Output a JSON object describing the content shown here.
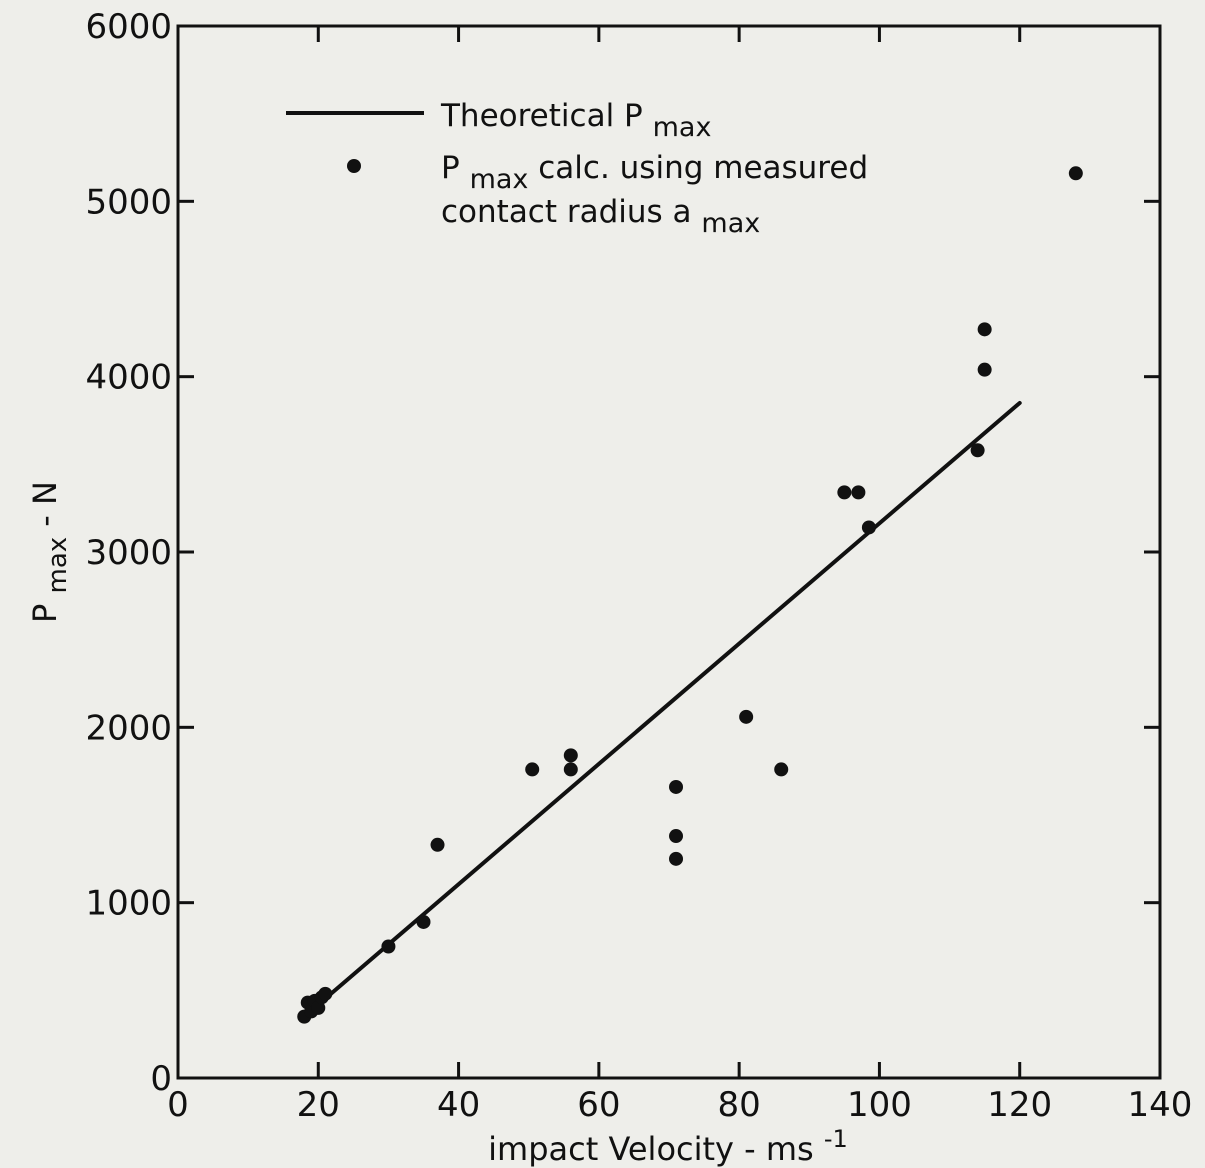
{
  "chart_data": {
    "type": "scatter",
    "title": "",
    "xlabel": "impact Velocity - ms",
    "xlabel_sup": "-1",
    "ylabel": "P",
    "ylabel_sub": "max",
    "ylabel_suffix": " - N",
    "xlim": [
      0,
      140
    ],
    "ylim": [
      0,
      6000
    ],
    "xticks": [
      0,
      20,
      40,
      60,
      80,
      100,
      120,
      140
    ],
    "yticks": [
      0,
      1000,
      2000,
      3000,
      4000,
      5000,
      6000
    ],
    "grid": false,
    "legend_position": "top-left",
    "legend": {
      "line": {
        "text": "Theoretical P",
        "sub": "max"
      },
      "points": {
        "line1_main": "P",
        "line1_sub": "max",
        "line1_rest": " calc. using measured",
        "line2_main": "contact radius a",
        "line2_sub": "max"
      }
    },
    "series": [
      {
        "kind": "line",
        "points": [
          [
            18,
            350
          ],
          [
            120,
            3850
          ]
        ]
      },
      {
        "kind": "scatter",
        "points": [
          [
            18,
            350
          ],
          [
            18.5,
            430
          ],
          [
            19,
            380
          ],
          [
            19.5,
            440
          ],
          [
            20,
            400
          ],
          [
            20.5,
            460
          ],
          [
            21,
            480
          ],
          [
            30,
            750
          ],
          [
            35,
            890
          ],
          [
            37,
            1330
          ],
          [
            50.5,
            1760
          ],
          [
            56,
            1840
          ],
          [
            56,
            1760
          ],
          [
            71,
            1660
          ],
          [
            71,
            1380
          ],
          [
            71,
            1250
          ],
          [
            81,
            2060
          ],
          [
            86,
            1760
          ],
          [
            95,
            3340
          ],
          [
            97,
            3340
          ],
          [
            98.5,
            3140
          ],
          [
            114,
            3580
          ],
          [
            115,
            4270
          ],
          [
            115,
            4040
          ],
          [
            128,
            5160
          ]
        ]
      }
    ]
  }
}
